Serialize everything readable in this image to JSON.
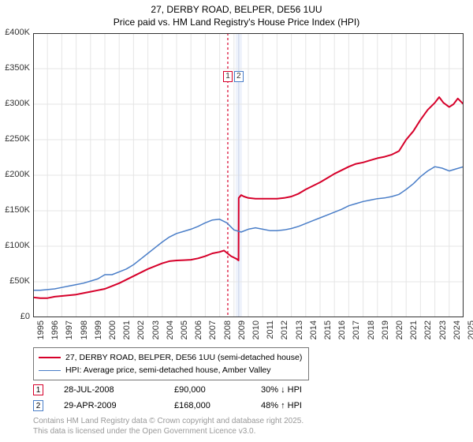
{
  "title": {
    "line1": "27, DERBY ROAD, BELPER, DE56 1UU",
    "line2": "Price paid vs. HM Land Registry's House Price Index (HPI)",
    "fontsize": 12
  },
  "chart": {
    "type": "line",
    "background_color": "#ffffff",
    "border_color": "#333333",
    "grid_color": "#e5e5e5",
    "x": {
      "min": 1995,
      "max": 2025,
      "tick_step": 1,
      "labels": [
        "1995",
        "1996",
        "1997",
        "1998",
        "1999",
        "2000",
        "2001",
        "2002",
        "2003",
        "2004",
        "2005",
        "2006",
        "2007",
        "2008",
        "2009",
        "2010",
        "2011",
        "2012",
        "2013",
        "2014",
        "2015",
        "2016",
        "2017",
        "2018",
        "2019",
        "2020",
        "2021",
        "2022",
        "2023",
        "2024",
        "2025"
      ],
      "label_fontsize": 11,
      "label_rotation_deg": -90
    },
    "y": {
      "min": 0,
      "max": 400000,
      "tick_step": 50000,
      "labels": [
        "£0",
        "£50K",
        "£100K",
        "£150K",
        "£200K",
        "£250K",
        "£300K",
        "£350K",
        "£400K"
      ],
      "label_fontsize": 11
    },
    "series": [
      {
        "key": "property",
        "label": "27, DERBY ROAD, BELPER, DE56 1UU (semi-detached house)",
        "color": "#d6002a",
        "line_width": 2,
        "data": [
          [
            1995.0,
            28000
          ],
          [
            1995.5,
            27000
          ],
          [
            1996.0,
            27000
          ],
          [
            1996.5,
            29000
          ],
          [
            1997.0,
            30000
          ],
          [
            1997.5,
            31000
          ],
          [
            1998.0,
            32000
          ],
          [
            1998.5,
            34000
          ],
          [
            1999.0,
            36000
          ],
          [
            1999.5,
            38000
          ],
          [
            2000.0,
            40000
          ],
          [
            2000.5,
            44000
          ],
          [
            2001.0,
            48000
          ],
          [
            2001.5,
            53000
          ],
          [
            2002.0,
            58000
          ],
          [
            2002.5,
            63000
          ],
          [
            2003.0,
            68000
          ],
          [
            2003.5,
            72000
          ],
          [
            2004.0,
            76000
          ],
          [
            2004.5,
            79000
          ],
          [
            2005.0,
            80000
          ],
          [
            2005.5,
            80500
          ],
          [
            2006.0,
            81000
          ],
          [
            2006.5,
            83000
          ],
          [
            2007.0,
            86000
          ],
          [
            2007.5,
            90000
          ],
          [
            2008.0,
            92000
          ],
          [
            2008.3,
            94000
          ],
          [
            2008.55,
            90000
          ],
          [
            2008.8,
            86000
          ],
          [
            2009.0,
            84000
          ],
          [
            2009.2,
            82000
          ],
          [
            2009.32,
            80000
          ],
          [
            2009.33,
            168000
          ],
          [
            2009.5,
            172000
          ],
          [
            2009.7,
            170000
          ],
          [
            2010.0,
            168000
          ],
          [
            2010.5,
            167000
          ],
          [
            2011.0,
            167000
          ],
          [
            2011.5,
            167000
          ],
          [
            2012.0,
            167000
          ],
          [
            2012.5,
            168000
          ],
          [
            2013.0,
            170000
          ],
          [
            2013.5,
            174000
          ],
          [
            2014.0,
            180000
          ],
          [
            2014.5,
            185000
          ],
          [
            2015.0,
            190000
          ],
          [
            2015.5,
            196000
          ],
          [
            2016.0,
            202000
          ],
          [
            2016.5,
            207000
          ],
          [
            2017.0,
            212000
          ],
          [
            2017.5,
            216000
          ],
          [
            2018.0,
            218000
          ],
          [
            2018.5,
            221000
          ],
          [
            2019.0,
            224000
          ],
          [
            2019.5,
            226000
          ],
          [
            2020.0,
            229000
          ],
          [
            2020.5,
            234000
          ],
          [
            2021.0,
            250000
          ],
          [
            2021.5,
            262000
          ],
          [
            2022.0,
            278000
          ],
          [
            2022.5,
            292000
          ],
          [
            2023.0,
            302000
          ],
          [
            2023.3,
            310000
          ],
          [
            2023.6,
            302000
          ],
          [
            2024.0,
            296000
          ],
          [
            2024.3,
            300000
          ],
          [
            2024.6,
            308000
          ],
          [
            2025.0,
            300000
          ]
        ]
      },
      {
        "key": "hpi",
        "label": "HPI: Average price, semi-detached house, Amber Valley",
        "color": "#4a7ec8",
        "line_width": 1.5,
        "data": [
          [
            1995.0,
            38000
          ],
          [
            1995.5,
            38000
          ],
          [
            1996.0,
            39000
          ],
          [
            1996.5,
            40000
          ],
          [
            1997.0,
            42000
          ],
          [
            1997.5,
            44000
          ],
          [
            1998.0,
            46000
          ],
          [
            1998.5,
            48000
          ],
          [
            1999.0,
            51000
          ],
          [
            1999.5,
            54000
          ],
          [
            2000.0,
            60000
          ],
          [
            2000.5,
            60000
          ],
          [
            2001.0,
            64000
          ],
          [
            2001.5,
            68000
          ],
          [
            2002.0,
            74000
          ],
          [
            2002.5,
            82000
          ],
          [
            2003.0,
            90000
          ],
          [
            2003.5,
            98000
          ],
          [
            2004.0,
            106000
          ],
          [
            2004.5,
            113000
          ],
          [
            2005.0,
            118000
          ],
          [
            2005.5,
            121000
          ],
          [
            2006.0,
            124000
          ],
          [
            2006.5,
            128000
          ],
          [
            2007.0,
            133000
          ],
          [
            2007.5,
            137000
          ],
          [
            2008.0,
            138000
          ],
          [
            2008.5,
            133000
          ],
          [
            2009.0,
            123000
          ],
          [
            2009.5,
            120000
          ],
          [
            2010.0,
            124000
          ],
          [
            2010.5,
            126000
          ],
          [
            2011.0,
            124000
          ],
          [
            2011.5,
            122000
          ],
          [
            2012.0,
            122000
          ],
          [
            2012.5,
            123000
          ],
          [
            2013.0,
            125000
          ],
          [
            2013.5,
            128000
          ],
          [
            2014.0,
            132000
          ],
          [
            2014.5,
            136000
          ],
          [
            2015.0,
            140000
          ],
          [
            2015.5,
            144000
          ],
          [
            2016.0,
            148000
          ],
          [
            2016.5,
            152000
          ],
          [
            2017.0,
            157000
          ],
          [
            2017.5,
            160000
          ],
          [
            2018.0,
            163000
          ],
          [
            2018.5,
            165000
          ],
          [
            2019.0,
            167000
          ],
          [
            2019.5,
            168000
          ],
          [
            2020.0,
            170000
          ],
          [
            2020.5,
            173000
          ],
          [
            2021.0,
            180000
          ],
          [
            2021.5,
            188000
          ],
          [
            2022.0,
            198000
          ],
          [
            2022.5,
            206000
          ],
          [
            2023.0,
            212000
          ],
          [
            2023.5,
            210000
          ],
          [
            2024.0,
            206000
          ],
          [
            2024.5,
            209000
          ],
          [
            2025.0,
            212000
          ]
        ]
      }
    ],
    "events": [
      {
        "n": "1",
        "x": 2008.57,
        "date": "28-JUL-2008",
        "price_display": "£90,000",
        "diff_display": "30% ↓ HPI",
        "marker_border": "#d6002a",
        "line_color": "#d6002a",
        "line_dash": "3,3"
      },
      {
        "n": "2",
        "x": 2009.33,
        "date": "29-APR-2009",
        "price_display": "£168,000",
        "diff_display": "48% ↑ HPI",
        "marker_border": "#4a7ec8",
        "line_color": "#cfd9ec",
        "line_dash": ""
      }
    ]
  },
  "legend_border": "#777777",
  "copyright": {
    "line1": "Contains HM Land Registry data © Crown copyright and database right 2025.",
    "line2": "This data is licensed under the Open Government Licence v3.0.",
    "color": "#999999",
    "fontsize": 10
  }
}
